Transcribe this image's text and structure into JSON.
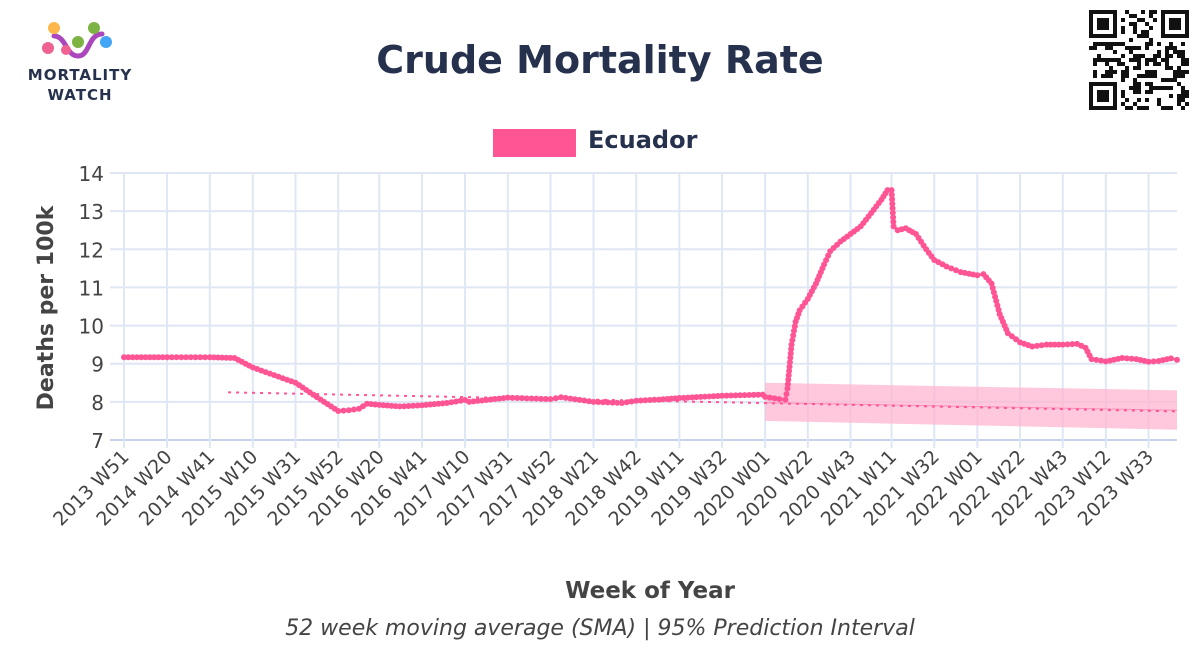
{
  "brand": {
    "logo_line1": "MORTALITY",
    "logo_line2": "WATCH",
    "logo_colors": [
      "#f06292",
      "#ffb74d",
      "#7cb342",
      "#42a5f5",
      "#ab47bc"
    ]
  },
  "chart_data": {
    "type": "line",
    "title": "Crude Mortality Rate",
    "xlabel": "Week of Year",
    "ylabel": "Deaths per 100k",
    "caption": "52 week moving average (SMA) | 95% Prediction Interval",
    "ylim": [
      7,
      14
    ],
    "yticks": [
      7,
      8,
      9,
      10,
      11,
      12,
      13,
      14
    ],
    "grid": true,
    "legend_position": "top-center",
    "xticks": [
      "2013 W51",
      "2014 W20",
      "2014 W41",
      "2015 W10",
      "2015 W31",
      "2015 W52",
      "2016 W20",
      "2016 W41",
      "2017 W10",
      "2017 W31",
      "2017 W52",
      "2018 W21",
      "2018 W42",
      "2019 W11",
      "2019 W32",
      "2020 W01",
      "2020 W22",
      "2020 W43",
      "2021 W11",
      "2021 W32",
      "2022 W01",
      "2022 W22",
      "2022 W43",
      "2023 W12",
      "2023 W33"
    ],
    "x_start": "2013 W51",
    "x_end": "2023 W47",
    "series": [
      {
        "name": "Ecuador",
        "color": "#ff5595",
        "points": [
          [
            "2013 W51",
            9.17
          ],
          [
            "2014 W20",
            9.17
          ],
          [
            "2014 W41",
            9.17
          ],
          [
            "2015 W01",
            9.15
          ],
          [
            "2015 W10",
            8.9
          ],
          [
            "2015 W31",
            8.5
          ],
          [
            "2015 W45",
            8.0
          ],
          [
            "2015 W52",
            7.76
          ],
          [
            "2016 W05",
            7.78
          ],
          [
            "2016 W10",
            7.82
          ],
          [
            "2016 W14",
            7.95
          ],
          [
            "2016 W20",
            7.92
          ],
          [
            "2016 W30",
            7.88
          ],
          [
            "2016 W41",
            7.91
          ],
          [
            "2017 W01",
            7.97
          ],
          [
            "2017 W10",
            8.05
          ],
          [
            "2017 W12",
            8.0
          ],
          [
            "2017 W31",
            8.11
          ],
          [
            "2017 W52",
            8.07
          ],
          [
            "2018 W05",
            8.12
          ],
          [
            "2018 W21",
            8.0
          ],
          [
            "2018 W35",
            7.97
          ],
          [
            "2018 W42",
            8.03
          ],
          [
            "2019 W01",
            8.06
          ],
          [
            "2019 W11",
            8.1
          ],
          [
            "2019 W32",
            8.16
          ],
          [
            "2019 W52",
            8.19
          ],
          [
            "2020 W01",
            8.13
          ],
          [
            "2020 W08",
            8.07
          ],
          [
            "2020 W11",
            8.06
          ],
          [
            "2020 W12",
            8.35
          ],
          [
            "2020 W14",
            9.5
          ],
          [
            "2020 W16",
            10.1
          ],
          [
            "2020 W18",
            10.4
          ],
          [
            "2020 W22",
            10.7
          ],
          [
            "2020 W26",
            11.1
          ],
          [
            "2020 W30",
            11.6
          ],
          [
            "2020 W33",
            11.95
          ],
          [
            "2020 W38",
            12.2
          ],
          [
            "2020 W43",
            12.4
          ],
          [
            "2020 W48",
            12.6
          ],
          [
            "2021 W01",
            12.95
          ],
          [
            "2021 W06",
            13.3
          ],
          [
            "2021 W09",
            13.55
          ],
          [
            "2021 W11",
            13.55
          ],
          [
            "2021 W12",
            12.6
          ],
          [
            "2021 W14",
            12.5
          ],
          [
            "2021 W18",
            12.55
          ],
          [
            "2021 W23",
            12.4
          ],
          [
            "2021 W28",
            12.0
          ],
          [
            "2021 W32",
            11.72
          ],
          [
            "2021 W38",
            11.55
          ],
          [
            "2021 W45",
            11.4
          ],
          [
            "2022 W01",
            11.32
          ],
          [
            "2022 W04",
            11.35
          ],
          [
            "2022 W08",
            11.1
          ],
          [
            "2022 W12",
            10.3
          ],
          [
            "2022 W16",
            9.8
          ],
          [
            "2022 W22",
            9.56
          ],
          [
            "2022 W28",
            9.45
          ],
          [
            "2022 W35",
            9.5
          ],
          [
            "2022 W43",
            9.5
          ],
          [
            "2022 W50",
            9.52
          ],
          [
            "2023 W02",
            9.42
          ],
          [
            "2023 W05",
            9.12
          ],
          [
            "2023 W12",
            9.06
          ],
          [
            "2023 W20",
            9.15
          ],
          [
            "2023 W27",
            9.12
          ],
          [
            "2023 W33",
            9.05
          ],
          [
            "2023 W38",
            9.07
          ],
          [
            "2023 W44",
            9.14
          ],
          [
            "2023 W47",
            9.1
          ]
        ]
      }
    ],
    "baseline": {
      "style": "dotted",
      "color": "#ff5595",
      "points": [
        [
          "2014 W50",
          8.25
        ],
        [
          "2023 W47",
          7.75
        ]
      ]
    },
    "prediction_interval": {
      "color": "#ffb6d0",
      "start": "2020 W01",
      "end": "2023 W47",
      "upper": [
        8.5,
        8.3
      ],
      "lower": [
        7.5,
        7.27
      ],
      "mean": [
        7.98,
        7.78
      ]
    }
  }
}
